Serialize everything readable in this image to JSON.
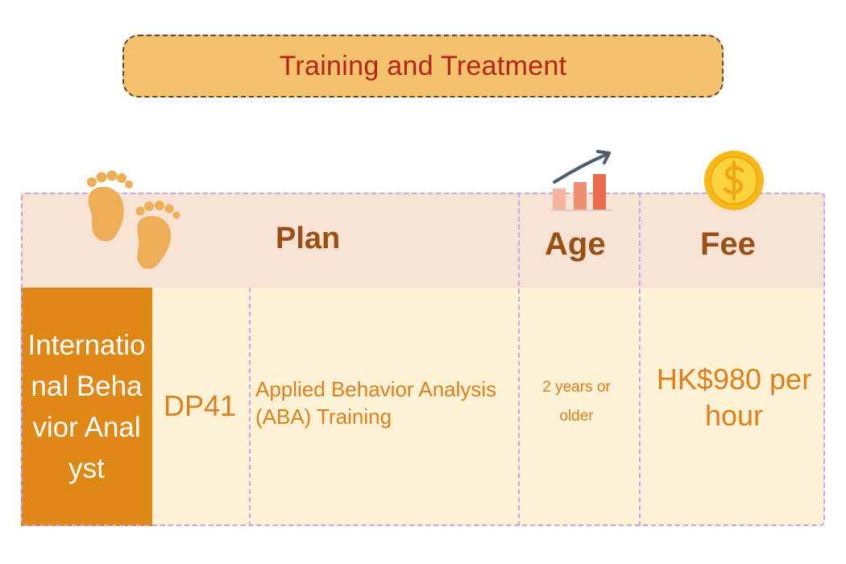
{
  "title": "Training and Treatment",
  "header": {
    "plan": "Plan",
    "age": "Age",
    "fee": "Fee"
  },
  "row": {
    "provider": "International Behavior Analyst",
    "code": "DP41",
    "description": "Applied Behavior Analysis (ABA) Training",
    "age": "2 years or older",
    "fee": "HK$980 per hour"
  },
  "icons": {
    "plan": "footprints-icon",
    "age": "growth-chart-icon",
    "fee": "dollar-coin-icon"
  },
  "colors": {
    "title_bg": "#f4c26c",
    "title_text": "#b5231b",
    "header_bg": "#f8e2d3",
    "body_bg": "#fdf1d6",
    "provider_bg": "#df8815",
    "header_text": "#9a4f16",
    "value_text": "#e0801c",
    "grid_line": "#c7a5e6"
  }
}
